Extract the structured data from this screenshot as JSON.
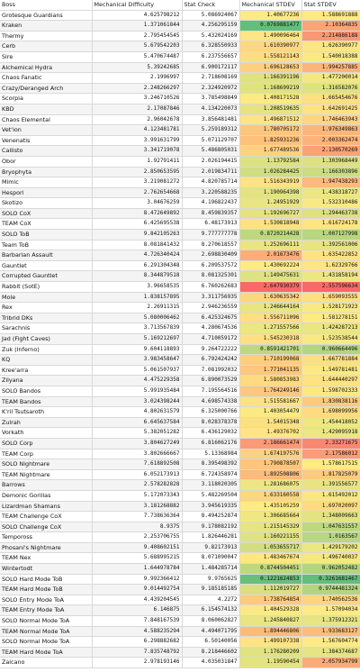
{
  "headers": [
    "Boss",
    "Mechanical Difficulty",
    "Stat Check",
    "Mechanical STDEV",
    "Stat STDEV"
  ],
  "rows": [
    [
      "Grotesque Guardians",
      "4.625798212",
      "5.086924067",
      "1.40677236",
      "1.588691888"
    ],
    [
      "Kraken",
      "1.371061844",
      "4.256295159",
      "0.0769881477",
      "2.10364835"
    ],
    [
      "Thermy",
      "2.795454545",
      "5.432024169",
      "1.490096464",
      "2.214886188"
    ],
    [
      "Cerb",
      "5.679542203",
      "6.328550933",
      "1.610390977",
      "1.626390977"
    ],
    [
      "Sire",
      "5.470674487",
      "6.237556657",
      "1.558121143",
      "1.540018388"
    ],
    [
      "Alchemical Hydra",
      "5.39242685",
      "6.900172117",
      "1.696128653",
      "1.994257885"
    ],
    [
      "Chaos Fanatic",
      "2.1996997",
      "2.718608169",
      "1.166391196",
      "1.477200014"
    ],
    [
      "Crazy/Deranged Arch",
      "2.248266297",
      "2.324920972",
      "1.168699219",
      "1.316582076"
    ],
    [
      "Scorpia",
      "3.246710526",
      "3.785498849",
      "1.408171528",
      "1.665454676"
    ],
    [
      "KBD",
      "2.17087846",
      "4.134220073",
      "1.208519635",
      "1.642691425"
    ],
    [
      "Chaos Elemental",
      "2.96042678",
      "3.856481481",
      "1.496871512",
      "1.746463943"
    ],
    [
      "Vet'ion",
      "4.123481781",
      "5.259189312",
      "1.780705172",
      "1.976349863"
    ],
    [
      "Venenatis",
      "3.991631799",
      "5.071129707",
      "1.825931236",
      "2.003362474"
    ],
    [
      "Callisto",
      "3.341719078",
      "5.486805031",
      "1.677489536",
      "2.130570269"
    ],
    [
      "Obor",
      "1.92791411",
      "2.026194415",
      "1.13792584",
      "1.303968449"
    ],
    [
      "Bryophyta",
      "2.850653595",
      "2.019834711",
      "1.026284425",
      "1.166303896"
    ],
    [
      "Mimic",
      "3.219081272",
      "4.820785714",
      "1.516343919",
      "1.947438293"
    ],
    [
      "Hespori",
      "2.762654668",
      "3.220588235",
      "1.190964398",
      "1.438318727"
    ],
    [
      "Skotizo",
      "3.04676259",
      "4.196822437",
      "1.24951929",
      "1.532310486"
    ],
    [
      "SOLO CoX",
      "8.472649892",
      "8.459839357",
      "1.192696727",
      "1.294463738"
    ],
    [
      "TEAM CoX",
      "6.425695538",
      "6.48173913",
      "1.530818948",
      "1.616724178"
    ],
    [
      "SOLO ToB",
      "9.842105263",
      "9.777777778",
      "0.8720214428",
      "1.007127998"
    ],
    [
      "Team ToB",
      "8.081841432",
      "8.270618557",
      "1.252696111",
      "1.392561006"
    ],
    [
      "Barbarian Assault",
      "4.726340424",
      "2.698830409",
      "2.01673476",
      "1.635422852"
    ],
    [
      "Gauntlet",
      "6.291304348",
      "6.209537572",
      "1.430692224",
      "1.62329766"
    ],
    [
      "Corrupted Gauntlet",
      "8.344879518",
      "8.081325301",
      "1.149475631",
      "1.431858194"
    ],
    [
      "Rabbit (SotE)",
      "3.96658535",
      "6.760262683",
      "2.647930379",
      "2.557596634"
    ],
    [
      "Mole",
      "1.838157895",
      "3.311756935",
      "1.630635342",
      "1.659093555"
    ],
    [
      "Rex",
      "2.26911315",
      "2.946236559",
      "1.246644164",
      "1.528171923"
    ],
    [
      "Tribrid DKs",
      "5.080006462",
      "6.425324675",
      "1.556711096",
      "1.581278151"
    ],
    [
      "Sarachnis",
      "3.713567839",
      "4.280674536",
      "1.271557566",
      "1.424287213"
    ],
    [
      "Jad (Fight Caves)",
      "5.169212697",
      "4.710059172",
      "1.545230318",
      "1.523538544"
    ],
    [
      "Zuk (Inferno)",
      "9.604118893",
      "9.264722222",
      "0.8591421701",
      "0.960664496"
    ],
    [
      "KQ",
      "3.983458647",
      "6.792424242",
      "1.710199068",
      "1.667781884"
    ],
    [
      "Kree'arra",
      "5.061507937",
      "7.081992032",
      "1.771041135",
      "1.549781481"
    ],
    [
      "Zilyana",
      "4.475229358",
      "6.890073529",
      "1.580853983",
      "1.644440297"
    ],
    [
      "SOLO Bandos",
      "5.991935484",
      "7.195564516",
      "1.764249146",
      "1.598702333"
    ],
    [
      "TEAM Bandos",
      "3.024398244",
      "4.698574338",
      "1.515581667",
      "1.830838116"
    ],
    [
      "K'ril Tsutsaroth",
      "4.802631579",
      "6.325000766",
      "1.403054479",
      "1.698099956"
    ],
    [
      "Zulrah",
      "6.645637584",
      "8.028378378",
      "1.54015348",
      "1.454418052"
    ],
    [
      "Vorkath",
      "5.382051282",
      "6.436129032",
      "1.49376702",
      "1.429095918"
    ],
    [
      "SOLO Corp",
      "3.804627249",
      "6.816062176",
      "2.186661474",
      "2.33271675"
    ],
    [
      "TEAM Corp",
      "3.802666667",
      "5.13368984",
      "1.674197576",
      "2.17586012"
    ],
    [
      "SOLO Nightmare",
      "7.618892508",
      "8.395498392",
      "1.790878507",
      "1.578617515"
    ],
    [
      "TEAM Nightmare",
      "6.052173913",
      "6.724358974",
      "1.892508806",
      "1.817825079"
    ],
    [
      "Barrows",
      "2.578282828",
      "3.118020305",
      "1.281686075",
      "1.391556577"
    ],
    [
      "Demonic Gorillas",
      "5.172073343",
      "5.482269504",
      "1.633160558",
      "1.615492012"
    ],
    [
      "Lizardman Shamans",
      "3.181268882",
      "3.945619335",
      "1.435105259",
      "1.697020097"
    ],
    [
      "TEAM Challenge CoX",
      "7.738636364",
      "8.494252874",
      "1.306685664",
      "1.348009663"
    ],
    [
      "SOLO Challenge CoX",
      "8.9375",
      "9.178082192",
      "1.215145329",
      "1.047631557"
    ],
    [
      "Tempoross",
      "2.253706755",
      "1.826446281",
      "1.160221155",
      "1.0163567"
    ],
    [
      "Phosani's Nightmare",
      "9.408602151",
      "9.82173913",
      "1.053655717",
      "1.429179202"
    ],
    [
      "TEAM Nex",
      "5.688995215",
      "8.071090047",
      "1.483467674",
      "1.496740037"
    ],
    [
      "Wintertodt",
      "1.644978784",
      "1.484285714",
      "0.8744504451",
      "0.962052482"
    ],
    [
      "SOLO Hard Mode ToB",
      "9.992366412",
      "9.9765625",
      "0.1221624853",
      "0.3261681467"
    ],
    [
      "TEAM Hard Mode ToB",
      "9.014492754",
      "9.185185185",
      "1.112019727",
      "0.9744481324"
    ],
    [
      "SOLO Entry Mode ToA",
      "4.439204545",
      "4.2272",
      "1.738764854",
      "1.740562536"
    ],
    [
      "TEAM Entry Mode ToA",
      "6.146875",
      "6.154574132",
      "1.404529328",
      "1.57094034"
    ],
    [
      "SOLO Normal Mode ToA",
      "7.848167539",
      "8.060062827",
      "1.245840827",
      "1.375912321"
    ],
    [
      "TEAM Normal Mode ToA",
      "4.588235294",
      "4.494071795",
      "1.894446806",
      "1.933683127"
    ],
    [
      "SOLO Normal Mode ToA",
      "6.298882682",
      "6.50140056",
      "1.499107338",
      "1.567604774"
    ],
    [
      "TEAM Hard Mode ToA",
      "7.835748792",
      "8.218446602",
      "1.176280209",
      "1.384374687"
    ],
    [
      "Zalcano",
      "2.978193146",
      "4.035031847",
      "1.19590454",
      "2.057934799"
    ]
  ]
}
